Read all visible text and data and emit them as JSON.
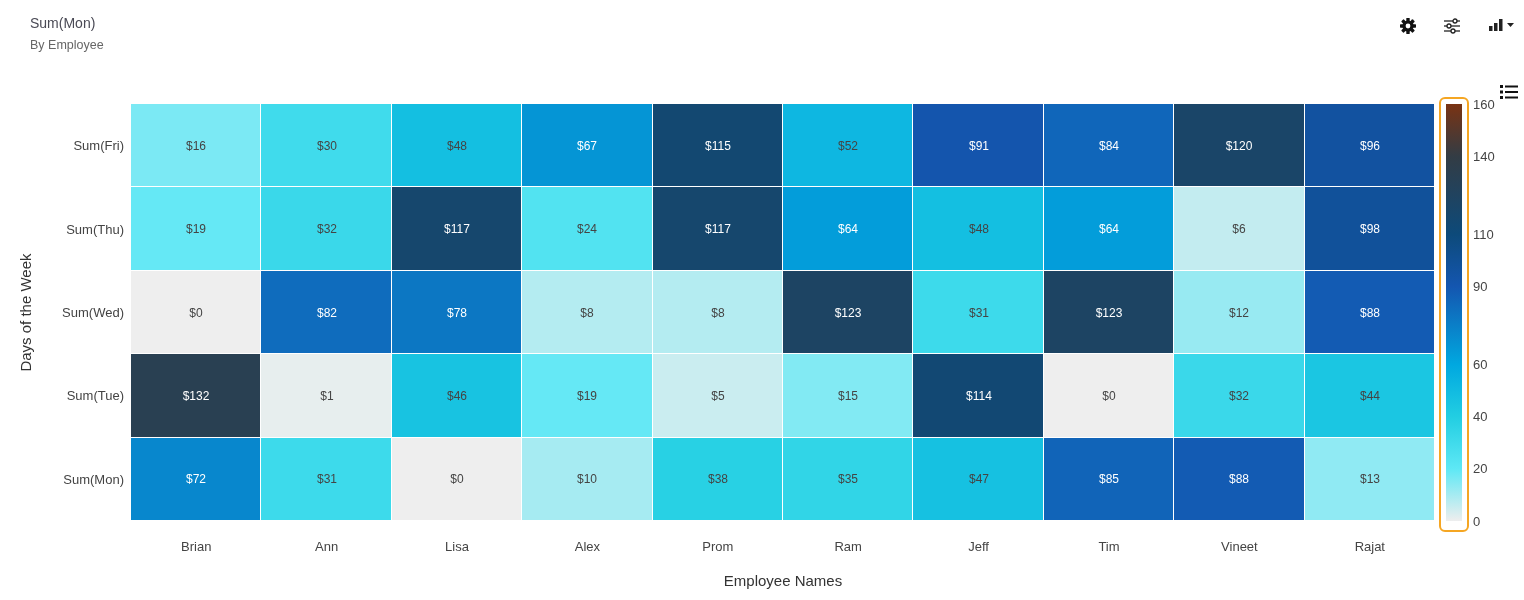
{
  "chart_data": {
    "type": "heatmap",
    "title": "Sum(Mon)",
    "subtitle": "By Employee",
    "xlabel": "Employee Names",
    "ylabel": "Days of the Week",
    "categories": [
      "Brian",
      "Ann",
      "Lisa",
      "Alex",
      "Prom",
      "Ram",
      "Jeff",
      "Tim",
      "Vineet",
      "Rajat"
    ],
    "y_categories": [
      "Sum(Fri)",
      "Sum(Thu)",
      "Sum(Wed)",
      "Sum(Tue)",
      "Sum(Mon)"
    ],
    "cells": [
      [
        16,
        30,
        48,
        67,
        115,
        52,
        91,
        84,
        120,
        96
      ],
      [
        19,
        32,
        117,
        24,
        117,
        64,
        48,
        64,
        6,
        98
      ],
      [
        0,
        82,
        78,
        8,
        8,
        123,
        31,
        123,
        12,
        88
      ],
      [
        132,
        1,
        46,
        19,
        5,
        15,
        114,
        0,
        32,
        44
      ],
      [
        72,
        31,
        0,
        10,
        38,
        35,
        47,
        85,
        88,
        13
      ]
    ],
    "cell_labels": [
      [
        "$16",
        "$30",
        "$48",
        "$67",
        "$115",
        "$52",
        "$91",
        "$84",
        "$120",
        "$96"
      ],
      [
        "$19",
        "$32",
        "$117",
        "$24",
        "$117",
        "$64",
        "$48",
        "$64",
        "$6",
        "$98"
      ],
      [
        "$0",
        "$82",
        "$78",
        "$8",
        "$8",
        "$123",
        "$31",
        "$123",
        "$12",
        "$88"
      ],
      [
        "$132",
        "$1",
        "$46",
        "$19",
        "$5",
        "$15",
        "$114",
        "$0",
        "$32",
        "$44"
      ],
      [
        "$72",
        "$31",
        "$0",
        "$10",
        "$38",
        "$35",
        "$47",
        "$85",
        "$88",
        "$13"
      ]
    ],
    "clim": [
      0,
      160
    ],
    "cticks": [
      0,
      20,
      40,
      60,
      90,
      110,
      140,
      160
    ]
  }
}
